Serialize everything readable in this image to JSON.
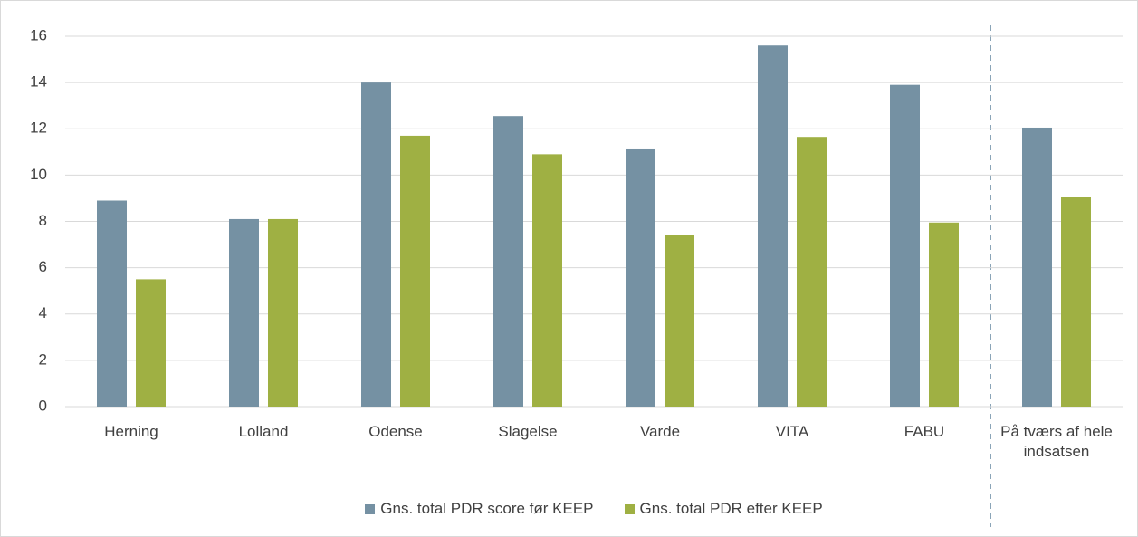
{
  "chart_data": {
    "type": "bar",
    "categories": [
      "Herning",
      "Lolland",
      "Odense",
      "Slagelse",
      "Varde",
      "VITA",
      "FABU",
      "På tværs af hele indsatsen"
    ],
    "series": [
      {
        "name": "Gns. total PDR score før KEEP",
        "color": "#7591a3",
        "values": [
          8.9,
          8.1,
          14.0,
          12.55,
          11.15,
          15.6,
          13.9,
          12.05
        ]
      },
      {
        "name": "Gns. total PDR efter KEEP",
        "color": "#9fb043",
        "values": [
          5.5,
          8.1,
          11.7,
          10.9,
          7.4,
          11.65,
          7.95,
          9.05
        ]
      }
    ],
    "ylim": [
      0,
      16
    ],
    "yticks": [
      0,
      2,
      4,
      6,
      8,
      10,
      12,
      14,
      16
    ],
    "grid": true,
    "legend": "bottom"
  }
}
